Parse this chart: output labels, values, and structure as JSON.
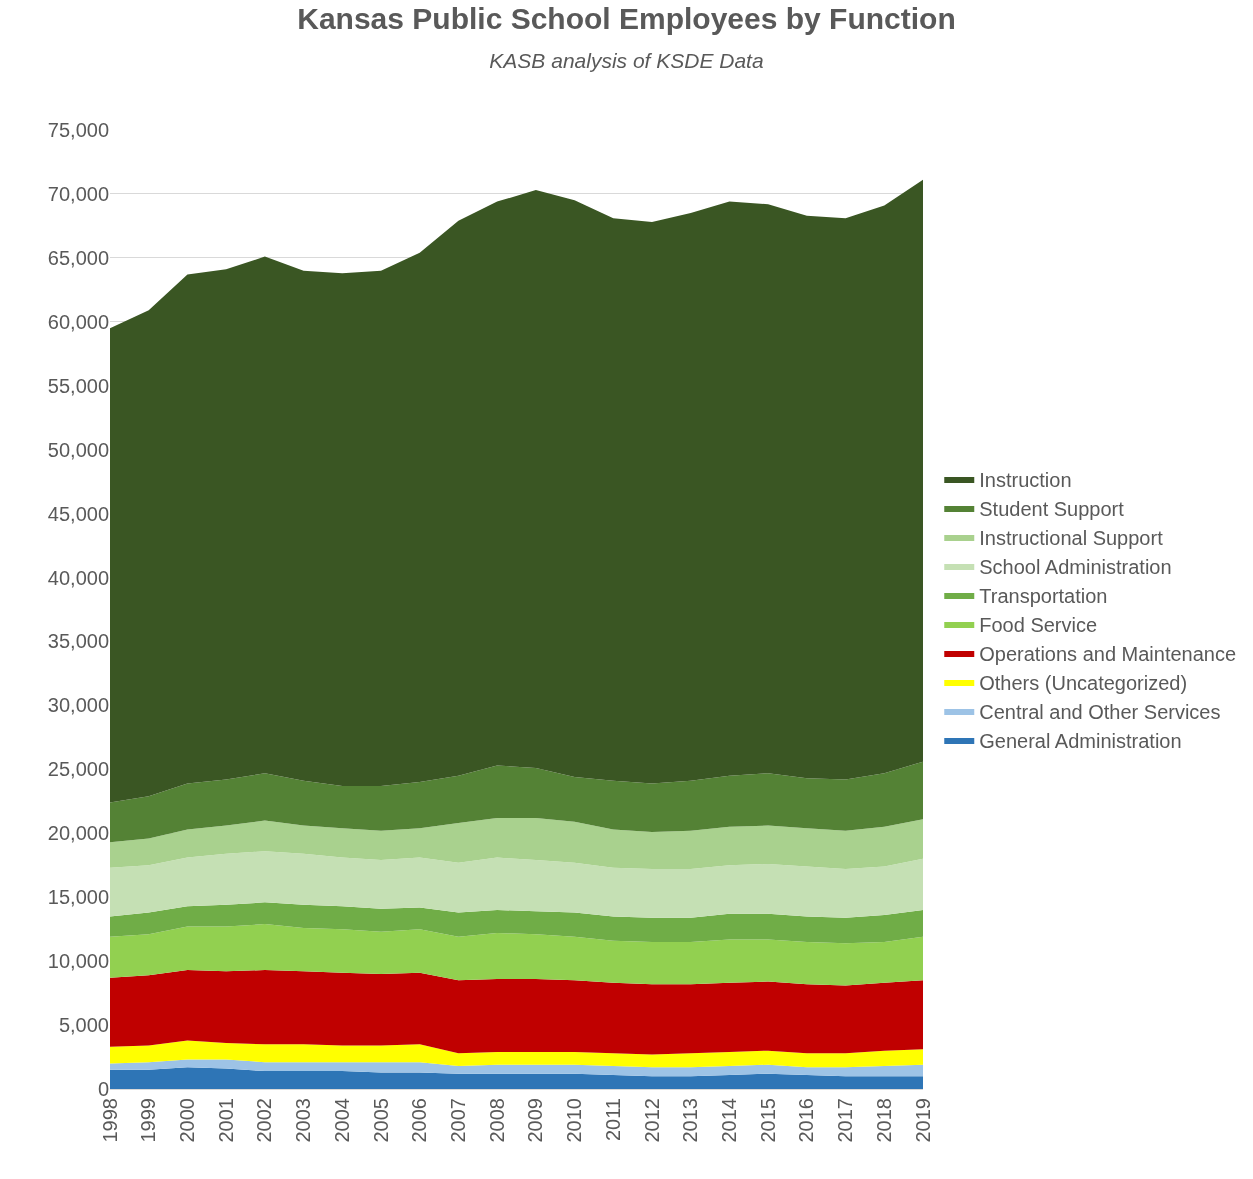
{
  "chart_data": {
    "type": "area",
    "stacked": true,
    "title": "Kansas Public School Employees by Function",
    "subtitle": "KASB analysis of KSDE Data",
    "categories": [
      "1998",
      "1999",
      "2000",
      "2001",
      "2002",
      "2003",
      "2004",
      "2005",
      "2006",
      "2007",
      "2008",
      "2009",
      "2010",
      "2011",
      "2012",
      "2013",
      "2014",
      "2015",
      "2016",
      "2017",
      "2018",
      "2019"
    ],
    "ylim": [
      0,
      75000
    ],
    "yticks": [
      {
        "value": 0,
        "label": "0"
      },
      {
        "value": 5000,
        "label": "5,000"
      },
      {
        "value": 10000,
        "label": "10,000"
      },
      {
        "value": 15000,
        "label": "15,000"
      },
      {
        "value": 20000,
        "label": "20,000"
      },
      {
        "value": 25000,
        "label": "25,000"
      },
      {
        "value": 30000,
        "label": "30,000"
      },
      {
        "value": 35000,
        "label": "35,000"
      },
      {
        "value": 40000,
        "label": "40,000"
      },
      {
        "value": 45000,
        "label": "45,000"
      },
      {
        "value": 50000,
        "label": "50,000"
      },
      {
        "value": 55000,
        "label": "55,000"
      },
      {
        "value": 60000,
        "label": "60,000"
      },
      {
        "value": 65000,
        "label": "65,000"
      },
      {
        "value": 70000,
        "label": "70,000"
      },
      {
        "value": 75000,
        "label": "75,000"
      }
    ],
    "grid": "y",
    "legend": "right",
    "series": [
      {
        "name": "General Administration",
        "color": "#2e75b6",
        "values": [
          1500,
          1500,
          1700,
          1600,
          1400,
          1400,
          1400,
          1300,
          1300,
          1200,
          1200,
          1200,
          1200,
          1100,
          1000,
          1000,
          1100,
          1200,
          1100,
          1000,
          1000,
          1000
        ]
      },
      {
        "name": "Central and Other Services",
        "color": "#9dc3e6",
        "values": [
          500,
          600,
          600,
          700,
          700,
          700,
          700,
          800,
          800,
          600,
          700,
          700,
          700,
          700,
          700,
          700,
          700,
          700,
          600,
          700,
          800,
          900
        ]
      },
      {
        "name": "Others (Uncategorized)",
        "color": "#ffff00",
        "values": [
          1300,
          1300,
          1500,
          1300,
          1400,
          1400,
          1300,
          1300,
          1400,
          1000,
          1000,
          1000,
          1000,
          1000,
          1000,
          1100,
          1100,
          1100,
          1100,
          1100,
          1200,
          1200
        ]
      },
      {
        "name": "Operations and Maintenance",
        "color": "#c00000",
        "values": [
          5400,
          5500,
          5500,
          5600,
          5800,
          5700,
          5700,
          5600,
          5600,
          5700,
          5700,
          5700,
          5600,
          5500,
          5500,
          5400,
          5400,
          5400,
          5400,
          5300,
          5300,
          5400
        ]
      },
      {
        "name": "Food Service",
        "color": "#92d050",
        "values": [
          3200,
          3200,
          3400,
          3500,
          3600,
          3400,
          3400,
          3300,
          3400,
          3400,
          3600,
          3500,
          3400,
          3300,
          3300,
          3300,
          3400,
          3300,
          3300,
          3300,
          3200,
          3400
        ]
      },
      {
        "name": "Transportation",
        "color": "#70ad47",
        "values": [
          1600,
          1700,
          1600,
          1700,
          1700,
          1800,
          1800,
          1800,
          1700,
          1900,
          1800,
          1800,
          1900,
          1900,
          1900,
          1900,
          2000,
          2000,
          2000,
          2000,
          2100,
          2100
        ]
      },
      {
        "name": "School Administration",
        "color": "#c5e0b4",
        "values": [
          3800,
          3700,
          3800,
          4000,
          4000,
          4000,
          3800,
          3800,
          3900,
          3900,
          4100,
          4000,
          3900,
          3800,
          3800,
          3800,
          3800,
          3900,
          3900,
          3800,
          3800,
          4000
        ]
      },
      {
        "name": "Instructional Support",
        "color": "#a9d18e",
        "values": [
          2000,
          2100,
          2200,
          2200,
          2400,
          2200,
          2300,
          2300,
          2300,
          3100,
          3100,
          3300,
          3200,
          3000,
          2900,
          3000,
          3000,
          3000,
          3000,
          3000,
          3100,
          3100
        ]
      },
      {
        "name": "Student Support",
        "color": "#548235",
        "values": [
          3100,
          3300,
          3600,
          3600,
          3700,
          3500,
          3300,
          3500,
          3600,
          3700,
          4100,
          3900,
          3500,
          3800,
          3800,
          3900,
          4000,
          4100,
          3900,
          4000,
          4200,
          4500
        ]
      },
      {
        "name": "Instruction",
        "color": "#3a5623",
        "values": [
          37100,
          38000,
          39800,
          39900,
          40400,
          39900,
          40100,
          40300,
          41400,
          43400,
          44100,
          45200,
          45100,
          44000,
          43900,
          44400,
          44900,
          44500,
          44000,
          43900,
          44400,
          45500
        ]
      }
    ]
  }
}
